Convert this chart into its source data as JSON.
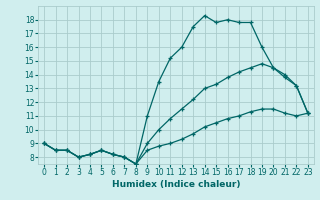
{
  "xlabel": "Humidex (Indice chaleur)",
  "bg_color": "#d0eeee",
  "grid_color": "#aacccc",
  "line_color": "#006666",
  "x_ticks": [
    0,
    1,
    2,
    3,
    4,
    5,
    6,
    7,
    8,
    9,
    10,
    11,
    12,
    13,
    14,
    15,
    16,
    17,
    18,
    19,
    20,
    21,
    22,
    23
  ],
  "y_ticks": [
    8,
    9,
    10,
    11,
    12,
    13,
    14,
    15,
    16,
    17,
    18
  ],
  "ylim": [
    7.5,
    19.0
  ],
  "xlim": [
    -0.5,
    23.5
  ],
  "curve1_x": [
    0,
    1,
    2,
    3,
    4,
    5,
    6,
    7,
    8,
    9,
    10,
    11,
    12,
    13,
    14,
    15,
    16,
    17,
    18,
    19,
    20,
    21,
    22,
    23
  ],
  "curve1_y": [
    9,
    8.5,
    8.5,
    8,
    8.2,
    8.5,
    8.2,
    8,
    7.5,
    11,
    13.5,
    15.2,
    16,
    17.5,
    18.3,
    17.8,
    18,
    17.8,
    17.8,
    16,
    14.5,
    14,
    13.2,
    11.2
  ],
  "curve2_x": [
    0,
    1,
    2,
    3,
    4,
    5,
    6,
    7,
    8,
    9,
    10,
    11,
    12,
    13,
    14,
    15,
    16,
    17,
    18,
    19,
    20,
    21,
    22,
    23
  ],
  "curve2_y": [
    9,
    8.5,
    8.5,
    8,
    8.2,
    8.5,
    8.2,
    8,
    7.5,
    9.0,
    10.0,
    10.8,
    11.5,
    12.2,
    13.0,
    13.3,
    13.8,
    14.2,
    14.5,
    14.8,
    14.5,
    13.8,
    13.2,
    11.2
  ],
  "curve3_x": [
    0,
    1,
    2,
    3,
    4,
    5,
    6,
    7,
    8,
    9,
    10,
    11,
    12,
    13,
    14,
    15,
    16,
    17,
    18,
    19,
    20,
    21,
    22,
    23
  ],
  "curve3_y": [
    9,
    8.5,
    8.5,
    8,
    8.2,
    8.5,
    8.2,
    8,
    7.5,
    8.5,
    8.8,
    9.0,
    9.3,
    9.7,
    10.2,
    10.5,
    10.8,
    11.0,
    11.3,
    11.5,
    11.5,
    11.2,
    11.0,
    11.2
  ]
}
